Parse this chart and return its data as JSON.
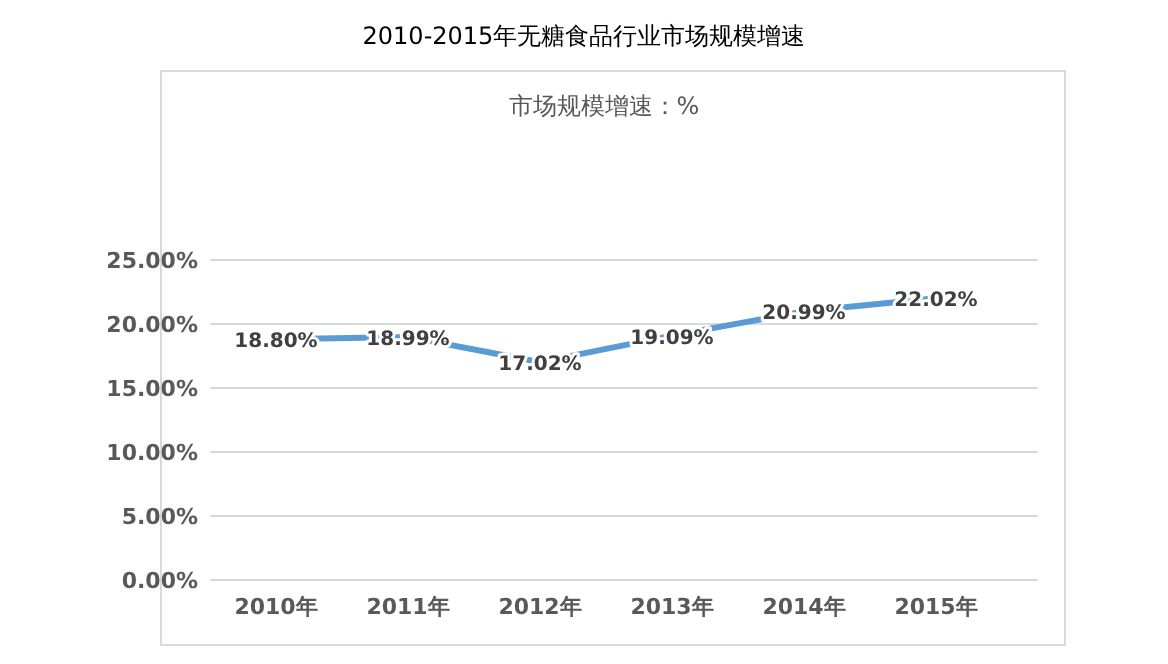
{
  "chart_data": {
    "type": "line",
    "title": "2010-2015年无糖食品行业市场规模增速",
    "subtitle": "市场规模增速：%",
    "categories": [
      "2010年",
      "2011年",
      "2012年",
      "2013年",
      "2014年",
      "2015年"
    ],
    "series": [
      {
        "color": "#5b9bd5",
        "values": [
          18.8,
          18.99,
          17.02,
          19.09,
          20.99,
          22.02
        ],
        "value_labels": [
          "18.80%",
          "18.99%",
          "17.02%",
          "19.09%",
          "20.99%",
          "22.02%"
        ]
      }
    ],
    "ylim": [
      0,
      25
    ],
    "yticks": [
      {
        "value": 0,
        "label": "0.00%"
      },
      {
        "value": 5,
        "label": "5.00%"
      },
      {
        "value": 10,
        "label": "10.00%"
      },
      {
        "value": 15,
        "label": "15.00%"
      },
      {
        "value": 20,
        "label": "20.00%"
      },
      {
        "value": 25,
        "label": "25.00%"
      }
    ],
    "grid": "y",
    "marker": "none",
    "line_style": "solid"
  }
}
